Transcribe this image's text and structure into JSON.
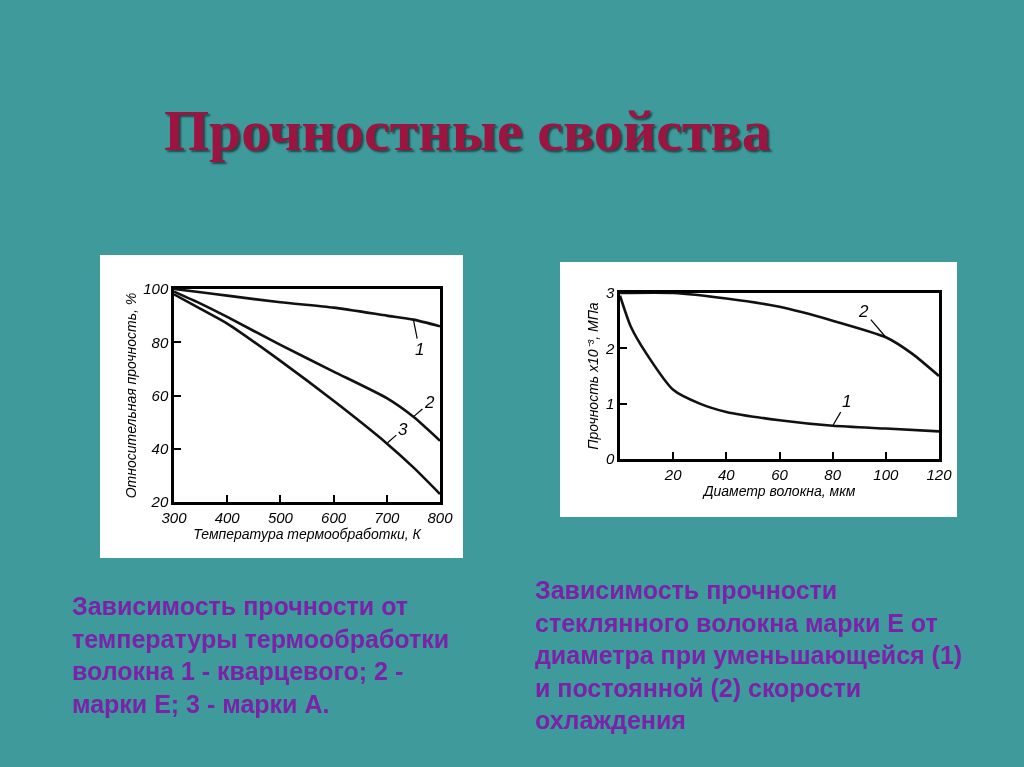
{
  "chart_data": [
    {
      "type": "line",
      "title": "Прочностные свойства",
      "xlabel": "Температура термообработки, К",
      "ylabel": "Относительная прочность, %",
      "x": [
        300,
        350,
        400,
        500,
        600,
        700,
        750,
        800
      ],
      "series": [
        {
          "name": "1",
          "color": "#111111",
          "values": [
            100,
            98.8,
            97.5,
            95,
            93,
            90,
            88.5,
            86
          ]
        },
        {
          "name": "2",
          "color": "#111111",
          "values": [
            99,
            94.5,
            89.5,
            79,
            69,
            59,
            52,
            43
          ]
        },
        {
          "name": "3",
          "color": "#111111",
          "values": [
            98,
            92.5,
            87,
            73,
            58,
            42,
            33,
            23
          ]
        }
      ],
      "xlim": [
        300,
        800
      ],
      "ylim": [
        20,
        100
      ],
      "xticks": [
        300,
        400,
        500,
        600,
        700,
        800
      ],
      "yticks": [
        20,
        40,
        60,
        80,
        100
      ],
      "line_style": "solid",
      "annotations": [
        "Зависимость прочности от температуры термообработки волокна 1 - кварцевого; 2 - марки Е; 3 - марки А."
      ]
    },
    {
      "type": "line",
      "xlabel": "Диаметр волокна, мкм",
      "ylabel": "Прочность х10⁻³, МПа",
      "series": [
        {
          "name": "1",
          "color": "#111111",
          "x": [
            0,
            4,
            10,
            20,
            30,
            40,
            60,
            80,
            100,
            120
          ],
          "values": [
            2.95,
            2.4,
            1.9,
            1.25,
            1.0,
            0.85,
            0.7,
            0.6,
            0.55,
            0.5
          ]
        },
        {
          "name": "2",
          "color": "#111111",
          "x": [
            0,
            20,
            40,
            60,
            80,
            100,
            110,
            120
          ],
          "values": [
            3.0,
            3.0,
            2.9,
            2.75,
            2.5,
            2.2,
            1.9,
            1.5
          ]
        }
      ],
      "xlim": [
        0,
        120
      ],
      "ylim": [
        0,
        3
      ],
      "xticks": [
        20,
        40,
        60,
        80,
        100,
        120
      ],
      "yticks": [
        0,
        1,
        2,
        3
      ],
      "line_style": "solid",
      "annotations": [
        "Зависимость прочности стеклянного волокна марки Е от диаметра при уменьшающейся (1) и постоянной (2) скорости охлаждения"
      ]
    }
  ]
}
